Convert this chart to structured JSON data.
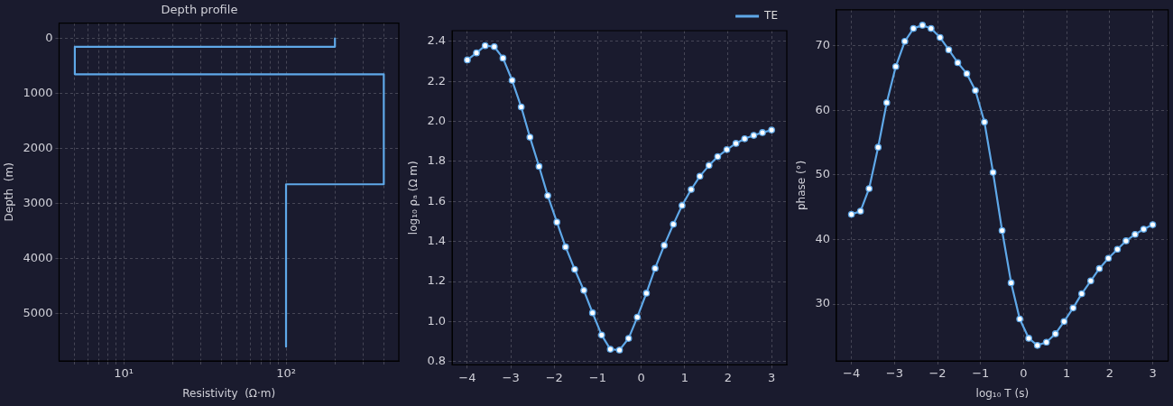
{
  "chart_data": [
    {
      "type": "line",
      "title": "Depth profile",
      "xlabel": "Resistivity  (Ω·m)",
      "ylabel": "Depth  (m)",
      "log": "x",
      "grid": true,
      "marker": "none",
      "line_style": "solid",
      "xlim": [
        4,
        495
      ],
      "ylim": [
        5860,
        -280
      ],
      "xticks": [
        {
          "value": 5,
          "label": null
        },
        {
          "value": 6,
          "label": null
        },
        {
          "value": 7,
          "label": null
        },
        {
          "value": 8,
          "label": null
        },
        {
          "value": 9,
          "label": null
        },
        {
          "value": 10,
          "label": "10¹"
        },
        {
          "value": 20,
          "label": null
        },
        {
          "value": 30,
          "label": null
        },
        {
          "value": 40,
          "label": null
        },
        {
          "value": 50,
          "label": null
        },
        {
          "value": 60,
          "label": null
        },
        {
          "value": 70,
          "label": null
        },
        {
          "value": 80,
          "label": null
        },
        {
          "value": 90,
          "label": null
        },
        {
          "value": 100,
          "label": "10²"
        },
        {
          "value": 200,
          "label": null
        },
        {
          "value": 300,
          "label": null
        },
        {
          "value": 400,
          "label": null
        }
      ],
      "yticks": [
        0,
        1000,
        2000,
        3000,
        4000,
        5000
      ],
      "series": [
        {
          "color": "#5fa8e8",
          "x": [
            200,
            200,
            5,
            5,
            400,
            400,
            100,
            100
          ],
          "values": [
            0,
            150,
            150,
            650,
            650,
            2650,
            2650,
            5600
          ]
        }
      ]
    },
    {
      "type": "line",
      "ylabel": "log₁₀ ρₐ (Ω m)",
      "grid": true,
      "legend": "top right",
      "marker": "circle",
      "line_style": "solid",
      "xlim": [
        -4.35,
        3.35
      ],
      "ylim": [
        0.784,
        2.453
      ],
      "xticks": [
        {
          "value": -4,
          "label": "−4"
        },
        {
          "value": -3,
          "label": "−3"
        },
        {
          "value": -2,
          "label": "−2"
        },
        {
          "value": -1,
          "label": "−1"
        },
        0,
        1,
        2,
        3
      ],
      "yticks": [
        0.8,
        {
          "value": 1,
          "label": "1.0"
        },
        1.2,
        1.4,
        1.6,
        1.8,
        {
          "value": 2,
          "label": "2.0"
        },
        2.2,
        2.4
      ],
      "series": [
        {
          "name": "TE",
          "color": "#5fa8e8",
          "x": [
            -4,
            -3.79,
            -3.59,
            -3.38,
            -3.18,
            -2.97,
            -2.76,
            -2.56,
            -2.35,
            -2.15,
            -1.94,
            -1.74,
            -1.53,
            -1.32,
            -1.12,
            -0.91,
            -0.71,
            -0.5,
            -0.29,
            -0.09,
            0.12,
            0.32,
            0.53,
            0.74,
            0.94,
            1.15,
            1.35,
            1.56,
            1.76,
            1.97,
            2.18,
            2.38,
            2.59,
            2.79,
            3
          ],
          "values": [
            2.307,
            2.342,
            2.378,
            2.373,
            2.316,
            2.205,
            2.072,
            1.921,
            1.775,
            1.629,
            1.497,
            1.373,
            1.261,
            1.156,
            1.044,
            0.933,
            0.862,
            0.858,
            0.916,
            1.022,
            1.142,
            1.266,
            1.381,
            1.486,
            1.58,
            1.66,
            1.726,
            1.78,
            1.824,
            1.859,
            1.89,
            1.913,
            1.93,
            1.944,
            1.957
          ]
        }
      ]
    },
    {
      "type": "line",
      "xlabel": "log₁₀ T (s)",
      "ylabel": "phase (°)",
      "grid": true,
      "marker": "circle",
      "line_style": "solid",
      "xlim": [
        -4.35,
        3.36
      ],
      "ylim": [
        21.2,
        75.6
      ],
      "xticks": [
        {
          "value": -4,
          "label": "−4"
        },
        {
          "value": -3,
          "label": "−3"
        },
        {
          "value": -2,
          "label": "−2"
        },
        {
          "value": -1,
          "label": "−1"
        },
        0,
        1,
        2,
        3
      ],
      "yticks": [
        30,
        40,
        50,
        60,
        70
      ],
      "series": [
        {
          "color": "#5fa8e8",
          "x": [
            -4,
            -3.79,
            -3.59,
            -3.38,
            -3.18,
            -2.97,
            -2.76,
            -2.56,
            -2.35,
            -2.15,
            -1.94,
            -1.74,
            -1.53,
            -1.32,
            -1.12,
            -0.91,
            -0.71,
            -0.5,
            -0.29,
            -0.09,
            0.12,
            0.32,
            0.53,
            0.74,
            0.94,
            1.15,
            1.35,
            1.56,
            1.76,
            1.97,
            2.18,
            2.38,
            2.59,
            2.79,
            3
          ],
          "values": [
            43.9,
            44.4,
            47.9,
            54.3,
            61.2,
            66.8,
            70.7,
            72.7,
            73.2,
            72.7,
            71.3,
            69.4,
            67.4,
            65.7,
            63.1,
            58.2,
            50.4,
            41.4,
            33.3,
            27.7,
            24.7,
            23.6,
            24.1,
            25.4,
            27.3,
            29.4,
            31.6,
            33.6,
            35.5,
            37.1,
            38.5,
            39.8,
            40.8,
            41.6,
            42.3
          ]
        }
      ]
    }
  ]
}
